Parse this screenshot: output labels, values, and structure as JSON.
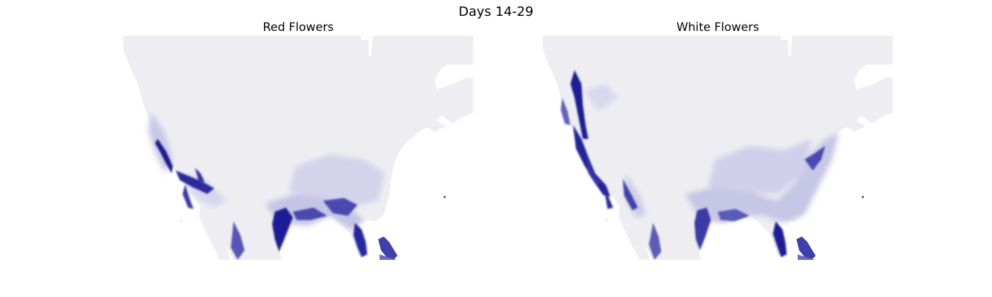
{
  "figure": {
    "title": "Days 14-29"
  },
  "panels": [
    {
      "title": "Red Flowers",
      "type": "density-map",
      "region": "North America (contiguous US and southern Canada)",
      "colors": {
        "land_base": "#eeeef2",
        "high": "#0f0f8c",
        "mid": "#6c6cc4",
        "low": "#c9c9e6",
        "water": "#ffffff"
      },
      "hotspots": [
        "California coast",
        "Southern California",
        "Gulf Coast of Texas",
        "Florida",
        "Bahamas"
      ]
    },
    {
      "title": "White Flowers",
      "type": "density-map",
      "region": "North America (contiguous US and southern Canada)",
      "colors": {
        "land_base": "#eeeef2",
        "high": "#0f0f8c",
        "mid": "#6c6cc4",
        "low": "#c9c9e6",
        "water": "#ffffff"
      },
      "hotspots": [
        "Pacific Northwest coast",
        "California coast",
        "Gulf Coast of Texas",
        "Florida",
        "Southeast US"
      ]
    }
  ]
}
